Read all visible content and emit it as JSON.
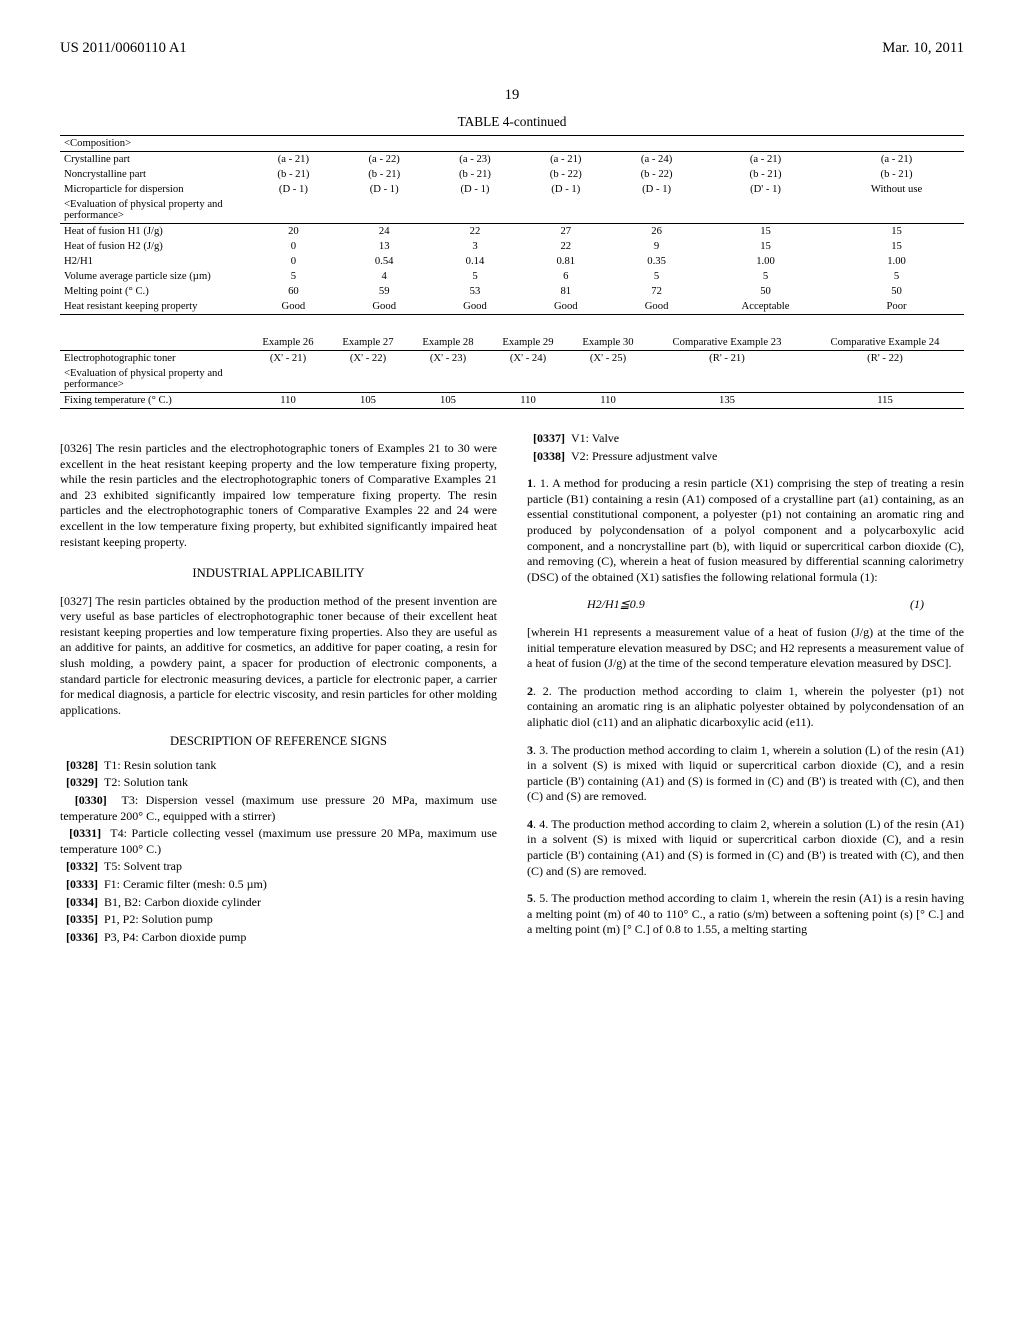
{
  "header": {
    "left": "US 2011/0060110 A1",
    "right": "Mar. 10, 2011"
  },
  "page_number": "19",
  "table_title": "TABLE 4-continued",
  "table_upper": {
    "section1_label": "<Composition>",
    "rows": [
      {
        "label": "Crystalline part",
        "cells": [
          "(a - 21)",
          "(a - 22)",
          "(a - 23)",
          "(a - 21)",
          "(a - 24)",
          "(a - 21)",
          "(a - 21)"
        ]
      },
      {
        "label": "Noncrystalline part",
        "cells": [
          "(b - 21)",
          "(b - 21)",
          "(b - 21)",
          "(b - 22)",
          "(b - 22)",
          "(b - 21)",
          "(b - 21)"
        ]
      },
      {
        "label": "Microparticle for dispersion",
        "cells": [
          "(D - 1)",
          "(D - 1)",
          "(D - 1)",
          "(D - 1)",
          "(D - 1)",
          "(D' - 1)",
          "Without use"
        ]
      },
      {
        "label": "<Evaluation of physical property and performance>",
        "cells": [
          "",
          "",
          "",
          "",
          "",
          "",
          ""
        ]
      }
    ],
    "rows2": [
      {
        "label": "Heat of fusion H1 (J/g)",
        "cells": [
          "20",
          "24",
          "22",
          "27",
          "26",
          "15",
          "15"
        ]
      },
      {
        "label": "Heat of fusion H2 (J/g)",
        "cells": [
          "0",
          "13",
          "3",
          "22",
          "9",
          "15",
          "15"
        ]
      },
      {
        "label": "H2/H1",
        "cells": [
          "0",
          "0.54",
          "0.14",
          "0.81",
          "0.35",
          "1.00",
          "1.00"
        ]
      },
      {
        "label": "Volume average particle size (µm)",
        "cells": [
          "5",
          "4",
          "5",
          "6",
          "5",
          "5",
          "5"
        ]
      },
      {
        "label": "Melting point (° C.)",
        "cells": [
          "60",
          "59",
          "53",
          "81",
          "72",
          "50",
          "50"
        ]
      },
      {
        "label": "Heat resistant keeping property",
        "cells": [
          "Good",
          "Good",
          "Good",
          "Good",
          "Good",
          "Acceptable",
          "Poor"
        ]
      }
    ]
  },
  "table_lower": {
    "headers": [
      "",
      "Example 26",
      "Example 27",
      "Example 28",
      "Example 29",
      "Example 30",
      "Comparative Example 23",
      "Comparative Example 24"
    ],
    "rows": [
      {
        "label": "Electrophotographic toner",
        "cells": [
          "(X' - 21)",
          "(X' - 22)",
          "(X' - 23)",
          "(X' - 24)",
          "(X' - 25)",
          "(R' - 21)",
          "(R' - 22)"
        ]
      },
      {
        "label": "<Evaluation of physical property and performance>",
        "cells": [
          "",
          "",
          "",
          "",
          "",
          "",
          ""
        ]
      }
    ],
    "rows2": [
      {
        "label": "Fixing temperature (° C.)",
        "cells": [
          "110",
          "105",
          "105",
          "110",
          "110",
          "135",
          "115"
        ]
      }
    ]
  },
  "left_col": {
    "p0326": "[0326] The resin particles and the electrophotographic toners of Examples 21 to 30 were excellent in the heat resistant keeping property and the low temperature fixing property, while the resin particles and the electrophotographic toners of Comparative Examples 21 and 23 exhibited significantly impaired low temperature fixing property. The resin particles and the electrophotographic toners of Comparative Examples 22 and 24 were excellent in the low temperature fixing property, but exhibited significantly impaired heat resistant keeping property.",
    "industrial_title": "INDUSTRIAL APPLICABILITY",
    "p0327": "[0327] The resin particles obtained by the production method of the present invention are very useful as base particles of electrophotographic toner because of their excellent heat resistant keeping properties and low temperature fixing properties. Also they are useful as an additive for paints, an additive for cosmetics, an additive for paper coating, a resin for slush molding, a powdery paint, a spacer for production of electronic components, a standard particle for electronic measuring devices, a particle for electronic paper, a carrier for medical diagnosis, a particle for electric viscosity, and resin particles for other molding applications.",
    "refs_title": "DESCRIPTION OF REFERENCE SIGNS",
    "refs": [
      {
        "num": "[0328]",
        "text": "T1: Resin solution tank"
      },
      {
        "num": "[0329]",
        "text": "T2: Solution tank"
      },
      {
        "num": "[0330]",
        "text": "T3: Dispersion vessel (maximum use pressure 20 MPa, maximum use temperature 200° C., equipped with a stirrer)"
      },
      {
        "num": "[0331]",
        "text": "T4: Particle collecting vessel (maximum use pressure 20 MPa, maximum use temperature 100° C.)"
      },
      {
        "num": "[0332]",
        "text": "T5: Solvent trap"
      },
      {
        "num": "[0333]",
        "text": "F1: Ceramic filter (mesh: 0.5 µm)"
      },
      {
        "num": "[0334]",
        "text": "B1, B2: Carbon dioxide cylinder"
      },
      {
        "num": "[0335]",
        "text": "P1, P2: Solution pump"
      },
      {
        "num": "[0336]",
        "text": "P3, P4: Carbon dioxide pump"
      }
    ]
  },
  "right_col": {
    "refs": [
      {
        "num": "[0337]",
        "text": "V1: Valve"
      },
      {
        "num": "[0338]",
        "text": "V2: Pressure adjustment valve"
      }
    ],
    "claim1": "1. A method for producing a resin particle (X1) comprising the step of treating a resin particle (B1) containing a resin (A1) composed of a crystalline part (a1) containing, as an essential constitutional component, a polyester (p1) not containing an aromatic ring and produced by polycondensation of a polyol component and a polycarboxylic acid component, and a noncrystalline part (b), with liquid or supercritical carbon dioxide (C), and removing (C), wherein a heat of fusion measured by differential scanning calorimetry (DSC) of the obtained (X1) satisfies the following relational formula (1):",
    "formula": "H2/H1≦0.9",
    "formula_num": "(1)",
    "claim1b": "[wherein H1 represents a measurement value of a heat of fusion (J/g) at the time of the initial temperature elevation measured by DSC; and H2 represents a measurement value of a heat of fusion (J/g) at the time of the second temperature elevation measured by DSC].",
    "claim2": "2. The production method according to claim 1, wherein the polyester (p1) not containing an aromatic ring is an aliphatic polyester obtained by polycondensation of an aliphatic diol (c11) and an aliphatic dicarboxylic acid (e11).",
    "claim3": "3. The production method according to claim 1, wherein a solution (L) of the resin (A1) in a solvent (S) is mixed with liquid or supercritical carbon dioxide (C), and a resin particle (B') containing (A1) and (S) is formed in (C) and (B') is treated with (C), and then (C) and (S) are removed.",
    "claim4": "4. The production method according to claim 2, wherein a solution (L) of the resin (A1) in a solvent (S) is mixed with liquid or supercritical carbon dioxide (C), and a resin particle (B') containing (A1) and (S) is formed in (C) and (B') is treated with (C), and then (C) and (S) are removed.",
    "claim5": "5. The production method according to claim 1, wherein the resin (A1) is a resin having a melting point (m) of 40 to 110° C., a ratio (s/m) between a softening point (s) [° C.] and a melting point (m) [° C.] of 0.8 to 1.55, a melting starting"
  }
}
